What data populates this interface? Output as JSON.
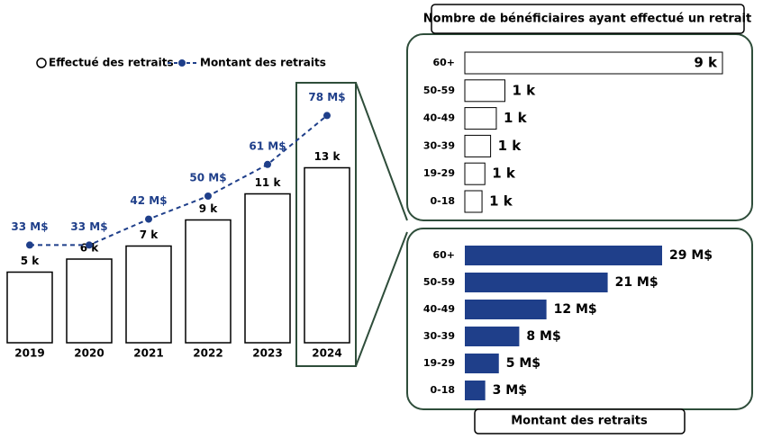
{
  "chart_data": [
    {
      "type": "combo",
      "categories": [
        "2019",
        "2020",
        "2021",
        "2022",
        "2023",
        "2024"
      ],
      "series": [
        {
          "name": "Effectué des retraits",
          "type": "bar",
          "color": "#ffffff",
          "values": [
            5,
            6,
            7,
            9,
            11,
            13
          ],
          "value_labels": [
            "5 k",
            "6 k",
            "7 k",
            "9 k",
            "11 k",
            "13 k"
          ]
        },
        {
          "name": "Montant des retraits",
          "type": "line",
          "color": "#1f3f8a",
          "values": [
            33,
            33,
            42,
            50,
            61,
            78
          ],
          "value_labels": [
            "33 M$",
            "33 M$",
            "42 M$",
            "50 M$",
            "61 M$",
            "78 M$"
          ]
        }
      ]
    },
    {
      "type": "hbar",
      "title": "Nombre de bénéficiaires ayant effectué un retrait",
      "color": "#ffffff",
      "categories": [
        "60+",
        "50-59",
        "40-49",
        "30-39",
        "19-29",
        "0-18"
      ],
      "values": [
        9,
        1.4,
        1.1,
        0.9,
        0.7,
        0.6
      ],
      "value_labels": [
        "9 k",
        "1 k",
        "1 k",
        "1 k",
        "1 k",
        "1 k"
      ]
    },
    {
      "type": "hbar",
      "title": "Montant des retraits",
      "color": "#1f3f8a",
      "categories": [
        "60+",
        "50-59",
        "40-49",
        "30-39",
        "19-29",
        "0-18"
      ],
      "values": [
        29,
        21,
        12,
        8,
        5,
        3
      ],
      "value_labels": [
        "29 M$",
        "21 M$",
        "12 M$",
        "8 M$",
        "5 M$",
        "3 M$"
      ]
    }
  ]
}
